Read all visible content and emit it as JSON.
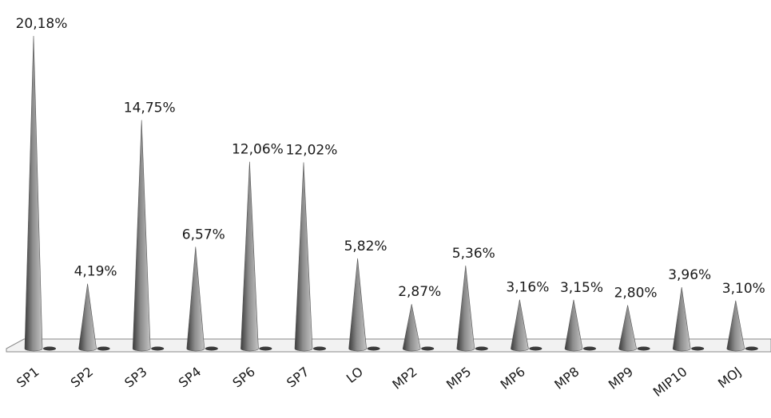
{
  "chart_data": {
    "type": "bar",
    "style": "3d-cone",
    "categories": [
      "SP1",
      "SP2",
      "SP3",
      "SP4",
      "SP6",
      "SP7",
      "LO",
      "MP2",
      "MP5",
      "MP6",
      "MP8",
      "MP9",
      "MIP10",
      "MOJ"
    ],
    "values": [
      20.18,
      4.19,
      14.75,
      6.57,
      12.06,
      12.02,
      5.82,
      2.87,
      5.36,
      3.16,
      3.15,
      2.8,
      3.96,
      3.1
    ],
    "data_labels": [
      "20,18%",
      "4,19%",
      "14,75%",
      "6,57%",
      "12,06%",
      "12,02%",
      "5,82%",
      "2,87%",
      "5,36%",
      "3,16%",
      "3,15%",
      "2,80%",
      "3,96%",
      "3,10%"
    ],
    "title": "",
    "xlabel": "",
    "ylabel": "",
    "ylim": [
      0,
      20.18
    ],
    "grid": false,
    "legend": "none",
    "colors": {
      "cone_dark": "#3a3a3a",
      "cone_mid": "#8c8c8c",
      "cone_light": "#c4c4c4",
      "floor": "#f2f2f2",
      "floor_edge": "#8a8a8a"
    }
  }
}
